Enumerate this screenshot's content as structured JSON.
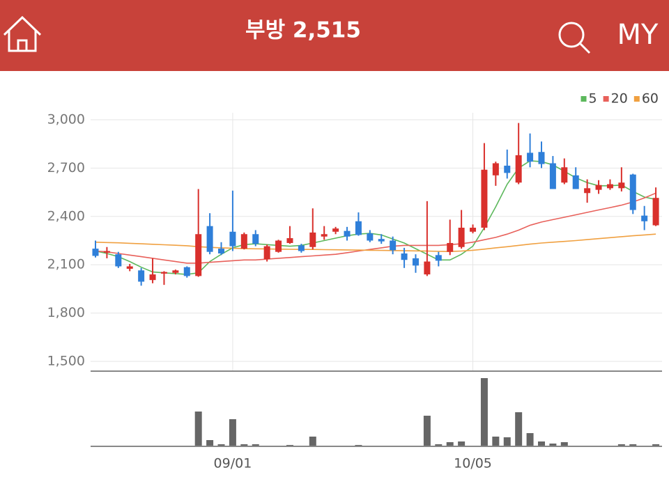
{
  "header": {
    "title": "부방 2,515",
    "right_label": "MY"
  },
  "chart_data": {
    "type": "candlestick",
    "categories": [
      null,
      null,
      null,
      null,
      null,
      null,
      null,
      null,
      null,
      null,
      null,
      null,
      "09/01",
      null,
      null,
      null,
      null,
      null,
      null,
      null,
      null,
      null,
      null,
      null,
      null,
      null,
      null,
      null,
      null,
      null,
      null,
      null,
      null,
      "10/05",
      null,
      null,
      null,
      null,
      null,
      null,
      null,
      null,
      null,
      null,
      null,
      null,
      null,
      null,
      null,
      null
    ],
    "open": [
      2200,
      2175,
      2165,
      2075,
      2065,
      2005,
      2045,
      2050,
      2085,
      2030,
      2340,
      2200,
      2305,
      2200,
      2290,
      2135,
      2180,
      2235,
      2220,
      2210,
      2275,
      2305,
      2310,
      2370,
      2295,
      2260,
      2250,
      2170,
      2140,
      2040,
      2160,
      2180,
      2210,
      2305,
      2330,
      2655,
      2715,
      2610,
      2795,
      2800,
      2730,
      2610,
      2655,
      2545,
      2565,
      2575,
      2575,
      2660,
      2405,
      2345
    ],
    "high": [
      2250,
      2210,
      2180,
      2105,
      2080,
      2140,
      2060,
      2070,
      2090,
      2570,
      2420,
      2240,
      2560,
      2300,
      2315,
      2225,
      2255,
      2340,
      2230,
      2450,
      2340,
      2335,
      2335,
      2425,
      2315,
      2290,
      2275,
      2205,
      2165,
      2495,
      2180,
      2380,
      2440,
      2350,
      2855,
      2740,
      2815,
      2980,
      2915,
      2865,
      2775,
      2760,
      2705,
      2630,
      2625,
      2630,
      2705,
      2665,
      2465,
      2580
    ],
    "low": [
      2145,
      2140,
      2080,
      2060,
      1970,
      1985,
      1975,
      2040,
      2020,
      2025,
      2165,
      2160,
      2185,
      2195,
      2215,
      2120,
      2175,
      2230,
      2175,
      2195,
      2255,
      2290,
      2250,
      2280,
      2240,
      2230,
      2165,
      2080,
      2050,
      2030,
      2090,
      2160,
      2200,
      2295,
      2315,
      2590,
      2635,
      2600,
      2705,
      2700,
      2570,
      2600,
      2570,
      2485,
      2540,
      2565,
      2555,
      2415,
      2315,
      2340
    ],
    "close": [
      2155,
      2185,
      2090,
      2090,
      1995,
      2040,
      2055,
      2065,
      2030,
      2290,
      2180,
      2170,
      2215,
      2290,
      2230,
      2215,
      2250,
      2265,
      2185,
      2300,
      2290,
      2325,
      2275,
      2285,
      2250,
      2245,
      2190,
      2130,
      2095,
      2120,
      2125,
      2235,
      2330,
      2330,
      2690,
      2730,
      2670,
      2780,
      2740,
      2725,
      2570,
      2705,
      2570,
      2575,
      2595,
      2600,
      2610,
      2440,
      2370,
      2515
    ],
    "up_color": "#d9302c",
    "down_color": "#2f7fd9",
    "ylim": [
      1500,
      3000
    ],
    "yticks": [
      {
        "value": 1500,
        "label": "1,500"
      },
      {
        "value": 1800,
        "label": "1,800"
      },
      {
        "value": 2100,
        "label": "2,100"
      },
      {
        "value": 2400,
        "label": "2,400"
      },
      {
        "value": 2700,
        "label": "2,700"
      },
      {
        "value": 3000,
        "label": "3,000"
      }
    ],
    "grid": true,
    "legend": "top-right",
    "series": [
      {
        "name": "5",
        "color": "#5cb85c",
        "values": [
          2185,
          2170,
          2150,
          2120,
          2085,
          2055,
          2050,
          2045,
          2040,
          2050,
          2120,
          2165,
          2205,
          2225,
          2230,
          2225,
          2220,
          2215,
          2220,
          2235,
          2250,
          2265,
          2280,
          2290,
          2295,
          2285,
          2260,
          2235,
          2200,
          2165,
          2130,
          2130,
          2165,
          2215,
          2330,
          2460,
          2600,
          2700,
          2745,
          2740,
          2720,
          2680,
          2640,
          2610,
          2590,
          2590,
          2595,
          2555,
          2520,
          2505
        ]
      },
      {
        "name": "20",
        "color": "#e8605a",
        "values": [
          2185,
          2180,
          2170,
          2160,
          2150,
          2140,
          2130,
          2120,
          2110,
          2110,
          2115,
          2120,
          2125,
          2130,
          2130,
          2135,
          2140,
          2145,
          2150,
          2155,
          2160,
          2165,
          2175,
          2185,
          2195,
          2205,
          2215,
          2220,
          2220,
          2220,
          2220,
          2225,
          2230,
          2240,
          2255,
          2270,
          2290,
          2315,
          2345,
          2365,
          2380,
          2395,
          2410,
          2425,
          2440,
          2455,
          2470,
          2490,
          2515,
          2545
        ]
      },
      {
        "name": "60",
        "color": "#f0a040",
        "values": [
          2240,
          2238,
          2236,
          2233,
          2230,
          2227,
          2224,
          2221,
          2218,
          2212,
          2208,
          2205,
          2203,
          2200,
          2199,
          2198,
          2197,
          2196,
          2195,
          2195,
          2194,
          2193,
          2192,
          2191,
          2190,
          2189,
          2188,
          2187,
          2186,
          2185,
          2183,
          2182,
          2185,
          2190,
          2197,
          2205,
          2212,
          2220,
          2228,
          2235,
          2240,
          2245,
          2250,
          2256,
          2262,
          2268,
          2274,
          2280,
          2285,
          2290
        ]
      }
    ],
    "volume": {
      "color": "#666666",
      "ylim": [
        0,
        100
      ],
      "values": [
        0,
        0,
        0,
        0,
        0,
        0,
        0,
        0,
        0,
        50,
        9,
        3,
        39,
        3,
        3,
        0,
        0,
        2,
        0,
        14,
        0,
        0,
        0,
        2,
        0,
        0,
        0,
        0,
        0,
        44,
        3,
        6,
        7,
        1,
        98,
        14,
        13,
        49,
        19,
        7,
        4,
        6,
        0,
        0,
        0,
        0,
        3,
        3,
        0,
        3
      ]
    }
  }
}
